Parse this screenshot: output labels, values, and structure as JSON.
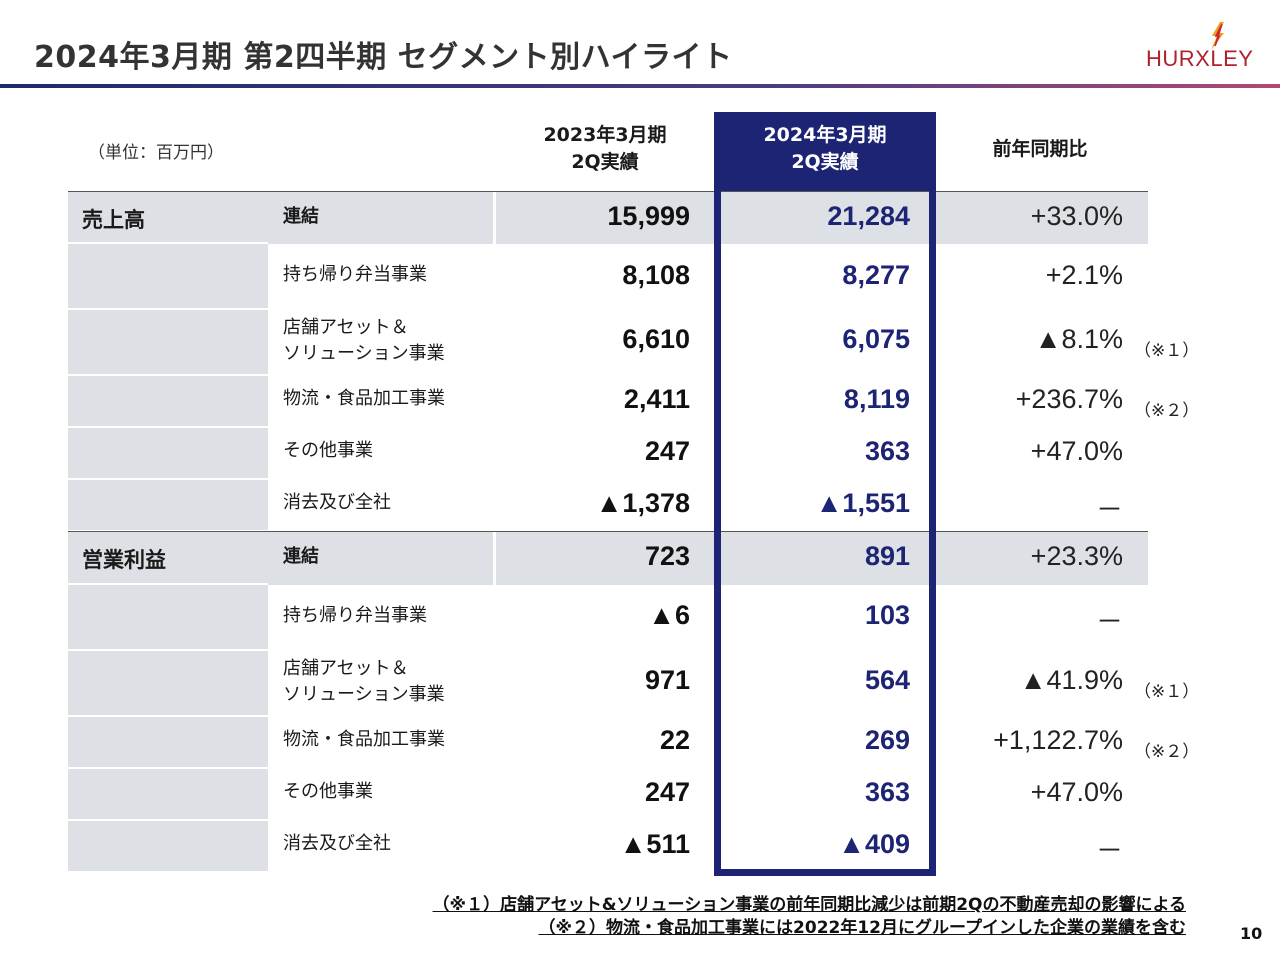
{
  "title": "2024年3月期 第2四半期 セグメント別ハイライト",
  "logo": {
    "text": "HURXLEY"
  },
  "table": {
    "unit": "（単位：百万円）",
    "headers": {
      "prev_line1": "2023年3月期",
      "prev_line2": "2Q実績",
      "curr_line1": "2024年3月期",
      "curr_line2": "2Q実績",
      "ratio": "前年同期比"
    },
    "sales": {
      "label": "売上高",
      "rows": [
        {
          "line1": "連結",
          "line2": "",
          "prev": "15,999",
          "curr": "21,284",
          "ratio": "+33.0%",
          "note": ""
        },
        {
          "line1": "持ち帰り弁当事業",
          "line2": "",
          "prev": "8,108",
          "curr": "8,277",
          "ratio": "+2.1%",
          "note": ""
        },
        {
          "line1": "店舗アセット＆",
          "line2": "ソリューション事業",
          "prev": "6,610",
          "curr": "6,075",
          "ratio": "▲8.1%",
          "note": "（※１）"
        },
        {
          "line1": "物流・食品加工事業",
          "line2": "",
          "prev": "2,411",
          "curr": "8,119",
          "ratio": "+236.7%",
          "note": "（※２）"
        },
        {
          "line1": "その他事業",
          "line2": "",
          "prev": "247",
          "curr": "363",
          "ratio": "+47.0%",
          "note": ""
        },
        {
          "line1": "消去及び全社",
          "line2": "",
          "prev": "▲1,378",
          "curr": "▲1,551",
          "ratio": "－",
          "note": ""
        }
      ]
    },
    "profit": {
      "label": "営業利益",
      "rows": [
        {
          "line1": "連結",
          "line2": "",
          "prev": "723",
          "curr": "891",
          "ratio": "+23.3%",
          "note": ""
        },
        {
          "line1": "持ち帰り弁当事業",
          "line2": "",
          "prev": "▲6",
          "curr": "103",
          "ratio": "－",
          "note": ""
        },
        {
          "line1": "店舗アセット＆",
          "line2": "ソリューション事業",
          "prev": "971",
          "curr": "564",
          "ratio": "▲41.9%",
          "note": "（※１）"
        },
        {
          "line1": "物流・食品加工事業",
          "line2": "",
          "prev": "22",
          "curr": "269",
          "ratio": "+1,122.7%",
          "note": "（※２）"
        },
        {
          "line1": "その他事業",
          "line2": "",
          "prev": "247",
          "curr": "363",
          "ratio": "+47.0%",
          "note": ""
        },
        {
          "line1": "消去及び全社",
          "line2": "",
          "prev": "▲511",
          "curr": "▲409",
          "ratio": "－",
          "note": ""
        }
      ]
    }
  },
  "footnotes": [
    "（※１）店舗アセット&ソリューション事業の前年同期比減少は前期2Qの不動産売却の影響による",
    "（※２）物流・食品加工事業には2022年12月にグループインした企業の業績を含む"
  ],
  "colors": {
    "navy": "#1c2473",
    "shade": "#dde0e5",
    "logo_red": "#b0202e",
    "bolt": "#e8a020"
  },
  "page_number": "10"
}
